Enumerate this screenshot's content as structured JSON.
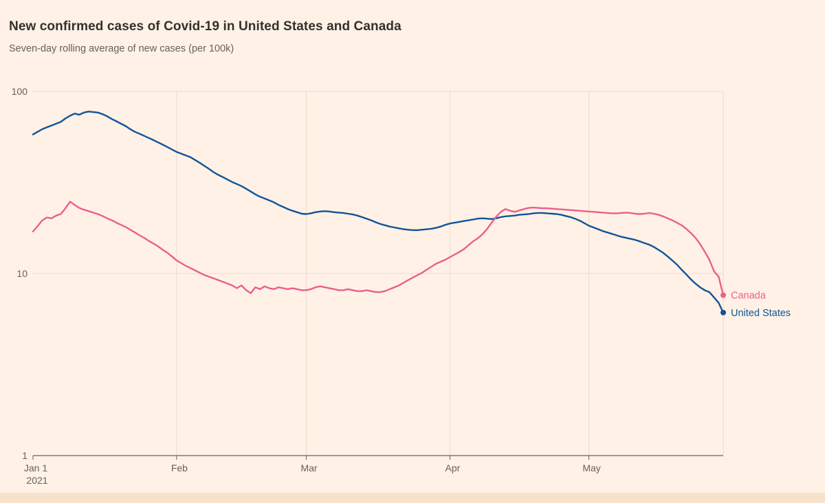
{
  "chart_data": {
    "type": "line",
    "title": "New confirmed cases of Covid-19 in United States and Canada",
    "subtitle": "Seven-day rolling average of new cases (per 100k)",
    "background": "#FFF1E5",
    "y_scale": "log10",
    "ylim": [
      1,
      100
    ],
    "y_ticks": [
      1,
      10,
      100
    ],
    "x_range": [
      0,
      149
    ],
    "x_ticks": [
      {
        "day": 0,
        "label": "Jan 1",
        "sublabel": "2021"
      },
      {
        "day": 31,
        "label": "Feb"
      },
      {
        "day": 59,
        "label": "Mar"
      },
      {
        "day": 90,
        "label": "Apr"
      },
      {
        "day": 120,
        "label": "May"
      }
    ],
    "grid": true,
    "legend_position": "line-end-labels",
    "series": [
      {
        "name": "United States",
        "color": "#0F5499",
        "points": [
          [
            0,
            58
          ],
          [
            1,
            60
          ],
          [
            2,
            62
          ],
          [
            3,
            63.5
          ],
          [
            4,
            65
          ],
          [
            5,
            66.5
          ],
          [
            6,
            68
          ],
          [
            7,
            71
          ],
          [
            8,
            73.5
          ],
          [
            9,
            75.5
          ],
          [
            10,
            74.5
          ],
          [
            11,
            76.5
          ],
          [
            12,
            77.5
          ],
          [
            13,
            77
          ],
          [
            14,
            76.5
          ],
          [
            15,
            75
          ],
          [
            16,
            73
          ],
          [
            17,
            70.5
          ],
          [
            18,
            68.5
          ],
          [
            19,
            66.5
          ],
          [
            20,
            64.5
          ],
          [
            21,
            62
          ],
          [
            22,
            60
          ],
          [
            23,
            58.5
          ],
          [
            24,
            57
          ],
          [
            25,
            55.5
          ],
          [
            26,
            54
          ],
          [
            27,
            52.5
          ],
          [
            28,
            51
          ],
          [
            29,
            49.5
          ],
          [
            30,
            48
          ],
          [
            31,
            46.5
          ],
          [
            32,
            45.5
          ],
          [
            33,
            44.5
          ],
          [
            34,
            43.5
          ],
          [
            35,
            42
          ],
          [
            36,
            40.5
          ],
          [
            37,
            39
          ],
          [
            38,
            37.5
          ],
          [
            39,
            36
          ],
          [
            40,
            34.8
          ],
          [
            41,
            33.8
          ],
          [
            42,
            32.8
          ],
          [
            43,
            31.8
          ],
          [
            44,
            31
          ],
          [
            45,
            30.2
          ],
          [
            46,
            29.2
          ],
          [
            47,
            28.2
          ],
          [
            48,
            27.2
          ],
          [
            49,
            26.4
          ],
          [
            50,
            25.8
          ],
          [
            51,
            25.2
          ],
          [
            52,
            24.6
          ],
          [
            53,
            23.8
          ],
          [
            54,
            23.2
          ],
          [
            55,
            22.6
          ],
          [
            56,
            22.1
          ],
          [
            57,
            21.7
          ],
          [
            58,
            21.3
          ],
          [
            59,
            21.2
          ],
          [
            60,
            21.4
          ],
          [
            61,
            21.7
          ],
          [
            62,
            21.9
          ],
          [
            63,
            22
          ],
          [
            64,
            21.9
          ],
          [
            65,
            21.7
          ],
          [
            66,
            21.6
          ],
          [
            67,
            21.5
          ],
          [
            68,
            21.3
          ],
          [
            69,
            21.1
          ],
          [
            70,
            20.8
          ],
          [
            71,
            20.4
          ],
          [
            72,
            20
          ],
          [
            73,
            19.6
          ],
          [
            74,
            19.1
          ],
          [
            75,
            18.7
          ],
          [
            76,
            18.4
          ],
          [
            77,
            18.1
          ],
          [
            78,
            17.9
          ],
          [
            79,
            17.7
          ],
          [
            80,
            17.5
          ],
          [
            81,
            17.4
          ],
          [
            82,
            17.3
          ],
          [
            83,
            17.3
          ],
          [
            84,
            17.4
          ],
          [
            85,
            17.5
          ],
          [
            86,
            17.6
          ],
          [
            87,
            17.8
          ],
          [
            88,
            18.1
          ],
          [
            89,
            18.5
          ],
          [
            90,
            18.8
          ],
          [
            91,
            19
          ],
          [
            92,
            19.2
          ],
          [
            93,
            19.4
          ],
          [
            94,
            19.6
          ],
          [
            95,
            19.8
          ],
          [
            96,
            20
          ],
          [
            97,
            20.1
          ],
          [
            98,
            20
          ],
          [
            99,
            19.9
          ],
          [
            100,
            20.1
          ],
          [
            101,
            20.4
          ],
          [
            102,
            20.6
          ],
          [
            103,
            20.7
          ],
          [
            104,
            20.8
          ],
          [
            105,
            21
          ],
          [
            106,
            21.1
          ],
          [
            107,
            21.2
          ],
          [
            108,
            21.4
          ],
          [
            109,
            21.5
          ],
          [
            110,
            21.5
          ],
          [
            111,
            21.4
          ],
          [
            112,
            21.3
          ],
          [
            113,
            21.2
          ],
          [
            114,
            21
          ],
          [
            115,
            20.7
          ],
          [
            116,
            20.4
          ],
          [
            117,
            20
          ],
          [
            118,
            19.5
          ],
          [
            119,
            18.9
          ],
          [
            120,
            18.3
          ],
          [
            121,
            17.9
          ],
          [
            122,
            17.5
          ],
          [
            123,
            17.1
          ],
          [
            124,
            16.8
          ],
          [
            125,
            16.5
          ],
          [
            126,
            16.2
          ],
          [
            127,
            15.9
          ],
          [
            128,
            15.7
          ],
          [
            129,
            15.5
          ],
          [
            130,
            15.3
          ],
          [
            131,
            15
          ],
          [
            132,
            14.7
          ],
          [
            133,
            14.4
          ],
          [
            134,
            14
          ],
          [
            135,
            13.5
          ],
          [
            136,
            13
          ],
          [
            137,
            12.4
          ],
          [
            138,
            11.8
          ],
          [
            139,
            11.2
          ],
          [
            140,
            10.5
          ],
          [
            141,
            9.9
          ],
          [
            142,
            9.3
          ],
          [
            143,
            8.8
          ],
          [
            144,
            8.4
          ],
          [
            145,
            8.1
          ],
          [
            146,
            7.9
          ],
          [
            147,
            7.4
          ],
          [
            148,
            6.9
          ],
          [
            149,
            6.1
          ]
        ]
      },
      {
        "name": "Canada",
        "color": "#EB5E8D",
        "points": [
          [
            0,
            17
          ],
          [
            1,
            18.2
          ],
          [
            2,
            19.6
          ],
          [
            3,
            20.3
          ],
          [
            4,
            20.1
          ],
          [
            5,
            20.8
          ],
          [
            6,
            21.2
          ],
          [
            7,
            22.8
          ],
          [
            8,
            24.8
          ],
          [
            9,
            23.8
          ],
          [
            10,
            22.9
          ],
          [
            11,
            22.4
          ],
          [
            12,
            22
          ],
          [
            13,
            21.6
          ],
          [
            14,
            21.2
          ],
          [
            15,
            20.7
          ],
          [
            16,
            20.1
          ],
          [
            17,
            19.6
          ],
          [
            18,
            19
          ],
          [
            19,
            18.5
          ],
          [
            20,
            18
          ],
          [
            21,
            17.4
          ],
          [
            22,
            16.8
          ],
          [
            23,
            16.2
          ],
          [
            24,
            15.7
          ],
          [
            25,
            15.1
          ],
          [
            26,
            14.6
          ],
          [
            27,
            14.1
          ],
          [
            28,
            13.5
          ],
          [
            29,
            13
          ],
          [
            30,
            12.4
          ],
          [
            31,
            11.8
          ],
          [
            32,
            11.4
          ],
          [
            33,
            11
          ],
          [
            34,
            10.7
          ],
          [
            35,
            10.4
          ],
          [
            36,
            10.1
          ],
          [
            37,
            9.8
          ],
          [
            38,
            9.6
          ],
          [
            39,
            9.4
          ],
          [
            40,
            9.2
          ],
          [
            41,
            9
          ],
          [
            42,
            8.8
          ],
          [
            43,
            8.6
          ],
          [
            44,
            8.3
          ],
          [
            45,
            8.6
          ],
          [
            46,
            8.1
          ],
          [
            47,
            7.8
          ],
          [
            48,
            8.4
          ],
          [
            49,
            8.2
          ],
          [
            50,
            8.5
          ],
          [
            51,
            8.3
          ],
          [
            52,
            8.2
          ],
          [
            53,
            8.4
          ],
          [
            54,
            8.3
          ],
          [
            55,
            8.2
          ],
          [
            56,
            8.3
          ],
          [
            57,
            8.2
          ],
          [
            58,
            8.1
          ],
          [
            59,
            8.1
          ],
          [
            60,
            8.2
          ],
          [
            61,
            8.4
          ],
          [
            62,
            8.5
          ],
          [
            63,
            8.4
          ],
          [
            64,
            8.3
          ],
          [
            65,
            8.2
          ],
          [
            66,
            8.1
          ],
          [
            67,
            8.1
          ],
          [
            68,
            8.2
          ],
          [
            69,
            8.1
          ],
          [
            70,
            8
          ],
          [
            71,
            8
          ],
          [
            72,
            8.1
          ],
          [
            73,
            8
          ],
          [
            74,
            7.9
          ],
          [
            75,
            7.9
          ],
          [
            76,
            8
          ],
          [
            77,
            8.2
          ],
          [
            78,
            8.4
          ],
          [
            79,
            8.6
          ],
          [
            80,
            8.9
          ],
          [
            81,
            9.2
          ],
          [
            82,
            9.5
          ],
          [
            83,
            9.8
          ],
          [
            84,
            10.1
          ],
          [
            85,
            10.5
          ],
          [
            86,
            10.9
          ],
          [
            87,
            11.3
          ],
          [
            88,
            11.6
          ],
          [
            89,
            11.9
          ],
          [
            90,
            12.3
          ],
          [
            91,
            12.7
          ],
          [
            92,
            13.1
          ],
          [
            93,
            13.6
          ],
          [
            94,
            14.3
          ],
          [
            95,
            15
          ],
          [
            96,
            15.6
          ],
          [
            97,
            16.4
          ],
          [
            98,
            17.5
          ],
          [
            99,
            19
          ],
          [
            100,
            20.5
          ],
          [
            101,
            21.8
          ],
          [
            102,
            22.6
          ],
          [
            103,
            22.1
          ],
          [
            104,
            21.8
          ],
          [
            105,
            22.2
          ],
          [
            106,
            22.6
          ],
          [
            107,
            22.9
          ],
          [
            108,
            23
          ],
          [
            109,
            22.9
          ],
          [
            110,
            22.8
          ],
          [
            111,
            22.8
          ],
          [
            112,
            22.7
          ],
          [
            113,
            22.6
          ],
          [
            114,
            22.5
          ],
          [
            115,
            22.4
          ],
          [
            116,
            22.3
          ],
          [
            117,
            22.2
          ],
          [
            118,
            22.1
          ],
          [
            119,
            22
          ],
          [
            120,
            21.9
          ],
          [
            121,
            21.8
          ],
          [
            122,
            21.7
          ],
          [
            123,
            21.6
          ],
          [
            124,
            21.5
          ],
          [
            125,
            21.4
          ],
          [
            126,
            21.4
          ],
          [
            127,
            21.5
          ],
          [
            128,
            21.6
          ],
          [
            129,
            21.5
          ],
          [
            130,
            21.3
          ],
          [
            131,
            21.2
          ],
          [
            132,
            21.3
          ],
          [
            133,
            21.5
          ],
          [
            134,
            21.3
          ],
          [
            135,
            21
          ],
          [
            136,
            20.6
          ],
          [
            137,
            20.1
          ],
          [
            138,
            19.6
          ],
          [
            139,
            19
          ],
          [
            140,
            18.4
          ],
          [
            141,
            17.6
          ],
          [
            142,
            16.7
          ],
          [
            143,
            15.7
          ],
          [
            144,
            14.5
          ],
          [
            145,
            13.2
          ],
          [
            146,
            11.9
          ],
          [
            147,
            10.3
          ],
          [
            148,
            9.6
          ],
          [
            149,
            7.6
          ]
        ]
      }
    ]
  }
}
